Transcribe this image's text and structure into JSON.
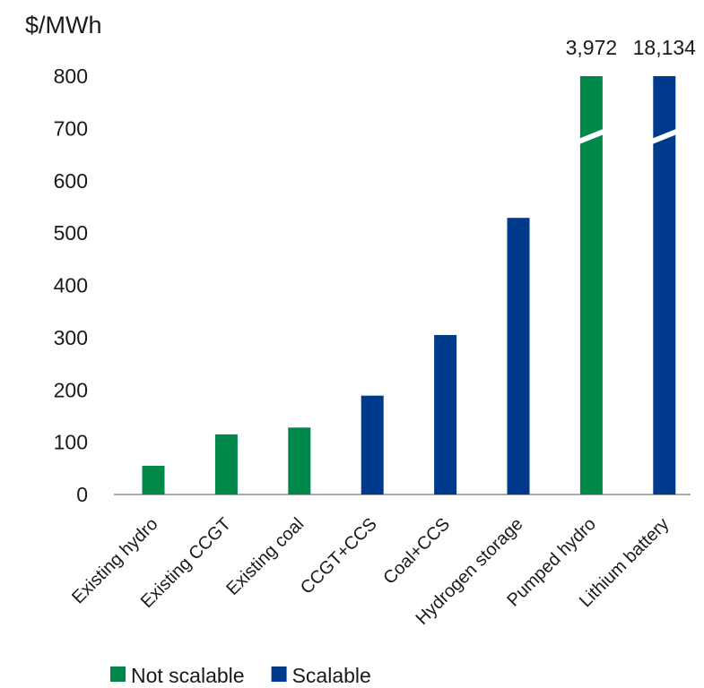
{
  "chart_data": {
    "type": "bar",
    "ylabel": "$/MWh",
    "ylim": [
      0,
      800
    ],
    "yticks": [
      0,
      100,
      200,
      300,
      400,
      500,
      600,
      700,
      800
    ],
    "categories": [
      "Existing hydro",
      "Existing CCGT",
      "Existing coal",
      "CCGT+CCS",
      "Coal+CCS",
      "Hydrogen storage",
      "Pumped hydro",
      "Lithium battery"
    ],
    "values": [
      55,
      115,
      128,
      189,
      305,
      529,
      3972,
      18134
    ],
    "groups": [
      "Not scalable",
      "Not scalable",
      "Not scalable",
      "Scalable",
      "Scalable",
      "Scalable",
      "Not scalable",
      "Scalable"
    ],
    "overflow_labels": [
      "",
      "",
      "",
      "",
      "",
      "",
      "3,972",
      "18,134"
    ],
    "axis_break": true,
    "grid": false,
    "legend": {
      "position": "bottom-left",
      "items": [
        {
          "name": "Not scalable",
          "color": "#00874a"
        },
        {
          "name": "Scalable",
          "color": "#003a8c"
        }
      ]
    }
  }
}
